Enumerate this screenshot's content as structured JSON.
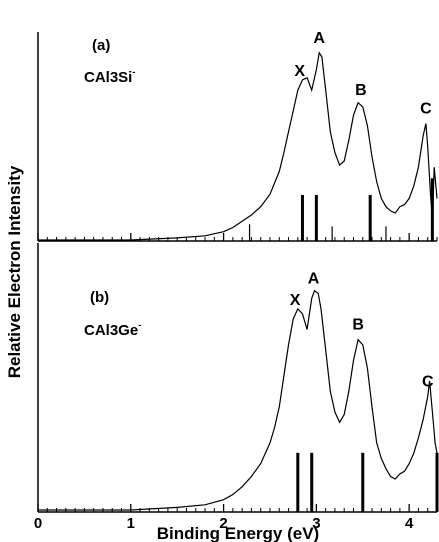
{
  "chart_data": [
    {
      "type": "line",
      "panel": "(a)",
      "species": "CAl3Si-",
      "species_text": {
        "base": "CAl3Si",
        "sup": "-"
      },
      "xlim": [
        0,
        4.3
      ],
      "xticks": [
        0,
        1,
        2,
        3,
        4
      ],
      "peak_labels": [
        {
          "text": "X",
          "x": 2.82
        },
        {
          "text": "A",
          "x": 3.03
        },
        {
          "text": "B",
          "x": 3.48
        },
        {
          "text": "C",
          "x": 4.18
        }
      ],
      "spectrum": {
        "x": [
          0.0,
          0.5,
          1.0,
          1.5,
          1.8,
          2.0,
          2.1,
          2.2,
          2.3,
          2.4,
          2.5,
          2.6,
          2.65,
          2.7,
          2.75,
          2.8,
          2.85,
          2.9,
          2.95,
          3.0,
          3.03,
          3.06,
          3.1,
          3.15,
          3.2,
          3.25,
          3.3,
          3.35,
          3.4,
          3.45,
          3.5,
          3.55,
          3.6,
          3.65,
          3.7,
          3.75,
          3.8,
          3.85,
          3.9,
          3.95,
          4.0,
          4.05,
          4.1,
          4.15,
          4.18,
          4.2,
          4.23,
          4.25,
          4.27,
          4.3
        ],
        "y": [
          0.0,
          0.0,
          0.0,
          0.01,
          0.02,
          0.04,
          0.06,
          0.09,
          0.12,
          0.16,
          0.22,
          0.33,
          0.42,
          0.52,
          0.62,
          0.72,
          0.77,
          0.78,
          0.72,
          0.82,
          0.9,
          0.88,
          0.72,
          0.52,
          0.42,
          0.36,
          0.38,
          0.48,
          0.6,
          0.66,
          0.64,
          0.55,
          0.4,
          0.28,
          0.2,
          0.16,
          0.14,
          0.13,
          0.16,
          0.17,
          0.2,
          0.26,
          0.35,
          0.5,
          0.56,
          0.45,
          0.22,
          0.1,
          0.35,
          0.2
        ]
      },
      "stick_lines": [
        {
          "x": 2.28,
          "height": 0.08
        },
        {
          "x": 2.85,
          "height": 0.22
        },
        {
          "x": 3.0,
          "height": 0.22
        },
        {
          "x": 3.17,
          "height": 0.07
        },
        {
          "x": 3.58,
          "height": 0.22
        },
        {
          "x": 3.75,
          "height": 0.07
        },
        {
          "x": 4.25,
          "height": 0.3
        }
      ]
    },
    {
      "type": "line",
      "panel": "(b)",
      "species": "CAl3Ge-",
      "species_text": {
        "base": "CAl3Ge",
        "sup": "-"
      },
      "xlim": [
        0,
        4.3
      ],
      "xticks": [
        0,
        1,
        2,
        3,
        4
      ],
      "peak_labels": [
        {
          "text": "X",
          "x": 2.77
        },
        {
          "text": "A",
          "x": 2.97
        },
        {
          "text": "B",
          "x": 3.45
        },
        {
          "text": "C",
          "x": 4.2
        }
      ],
      "spectrum": {
        "x": [
          0.0,
          0.5,
          1.0,
          1.5,
          1.8,
          2.0,
          2.1,
          2.2,
          2.3,
          2.4,
          2.5,
          2.55,
          2.6,
          2.65,
          2.7,
          2.75,
          2.8,
          2.85,
          2.9,
          2.95,
          2.98,
          3.02,
          3.05,
          3.1,
          3.15,
          3.2,
          3.25,
          3.3,
          3.35,
          3.4,
          3.45,
          3.5,
          3.55,
          3.6,
          3.65,
          3.7,
          3.75,
          3.8,
          3.85,
          3.9,
          3.95,
          4.0,
          4.05,
          4.1,
          4.15,
          4.2,
          4.22,
          4.25,
          4.28,
          4.3
        ],
        "y": [
          0.0,
          0.0,
          0.0,
          0.01,
          0.02,
          0.04,
          0.06,
          0.09,
          0.13,
          0.18,
          0.26,
          0.32,
          0.4,
          0.52,
          0.64,
          0.74,
          0.78,
          0.76,
          0.7,
          0.82,
          0.85,
          0.84,
          0.78,
          0.62,
          0.46,
          0.38,
          0.34,
          0.37,
          0.46,
          0.58,
          0.66,
          0.64,
          0.55,
          0.4,
          0.26,
          0.2,
          0.16,
          0.13,
          0.12,
          0.14,
          0.15,
          0.18,
          0.22,
          0.28,
          0.35,
          0.44,
          0.5,
          0.38,
          0.26,
          0.22
        ]
      },
      "stick_lines": [
        {
          "x": 2.8,
          "height": 0.22
        },
        {
          "x": 2.95,
          "height": 0.22
        },
        {
          "x": 3.5,
          "height": 0.22
        },
        {
          "x": 4.3,
          "height": 0.22
        }
      ]
    }
  ],
  "axes": {
    "ylabel": "Relative Electron Intensity",
    "xlabel": "Binding Energy (eV)",
    "xtick_labels": [
      "0",
      "1",
      "2",
      "3",
      "4"
    ]
  }
}
